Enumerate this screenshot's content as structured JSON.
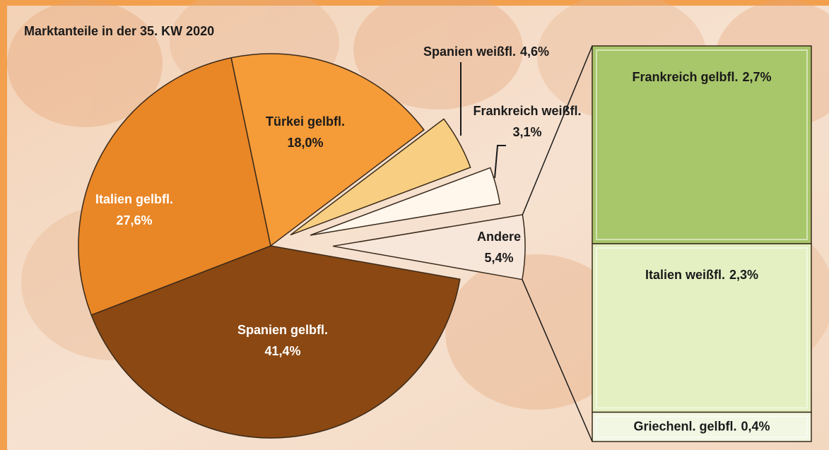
{
  "chart_data": {
    "type": "pie",
    "title": "Marktanteile in der 35. KW 2020",
    "categories": [
      "Spanien gelbfl.",
      "Italien gelbfl.",
      "Türkei gelbfl.",
      "Spanien weißfl.",
      "Frankreich weißfl.",
      "Andere"
    ],
    "values": [
      41.4,
      27.6,
      18.0,
      4.6,
      3.1,
      5.4
    ],
    "value_labels": [
      "41,4%",
      "27,6%",
      "18,0%",
      "4,6%",
      "3,1%",
      "5,4%"
    ],
    "colors": [
      "#8b4812",
      "#e98626",
      "#f59b38",
      "#f8cf82",
      "#fff6ec",
      "#f7e6da"
    ],
    "breakout": {
      "categories": [
        "Frankreich gelbfl.",
        "Italien weißfl.",
        "Griechenl. gelbfl."
      ],
      "values": [
        2.7,
        2.3,
        0.4
      ],
      "value_labels": [
        "2,7%",
        "2,3%",
        "0,4%"
      ],
      "colors": [
        "#a8c66a",
        "#e4f0c2",
        "#f1f7e3"
      ]
    }
  }
}
